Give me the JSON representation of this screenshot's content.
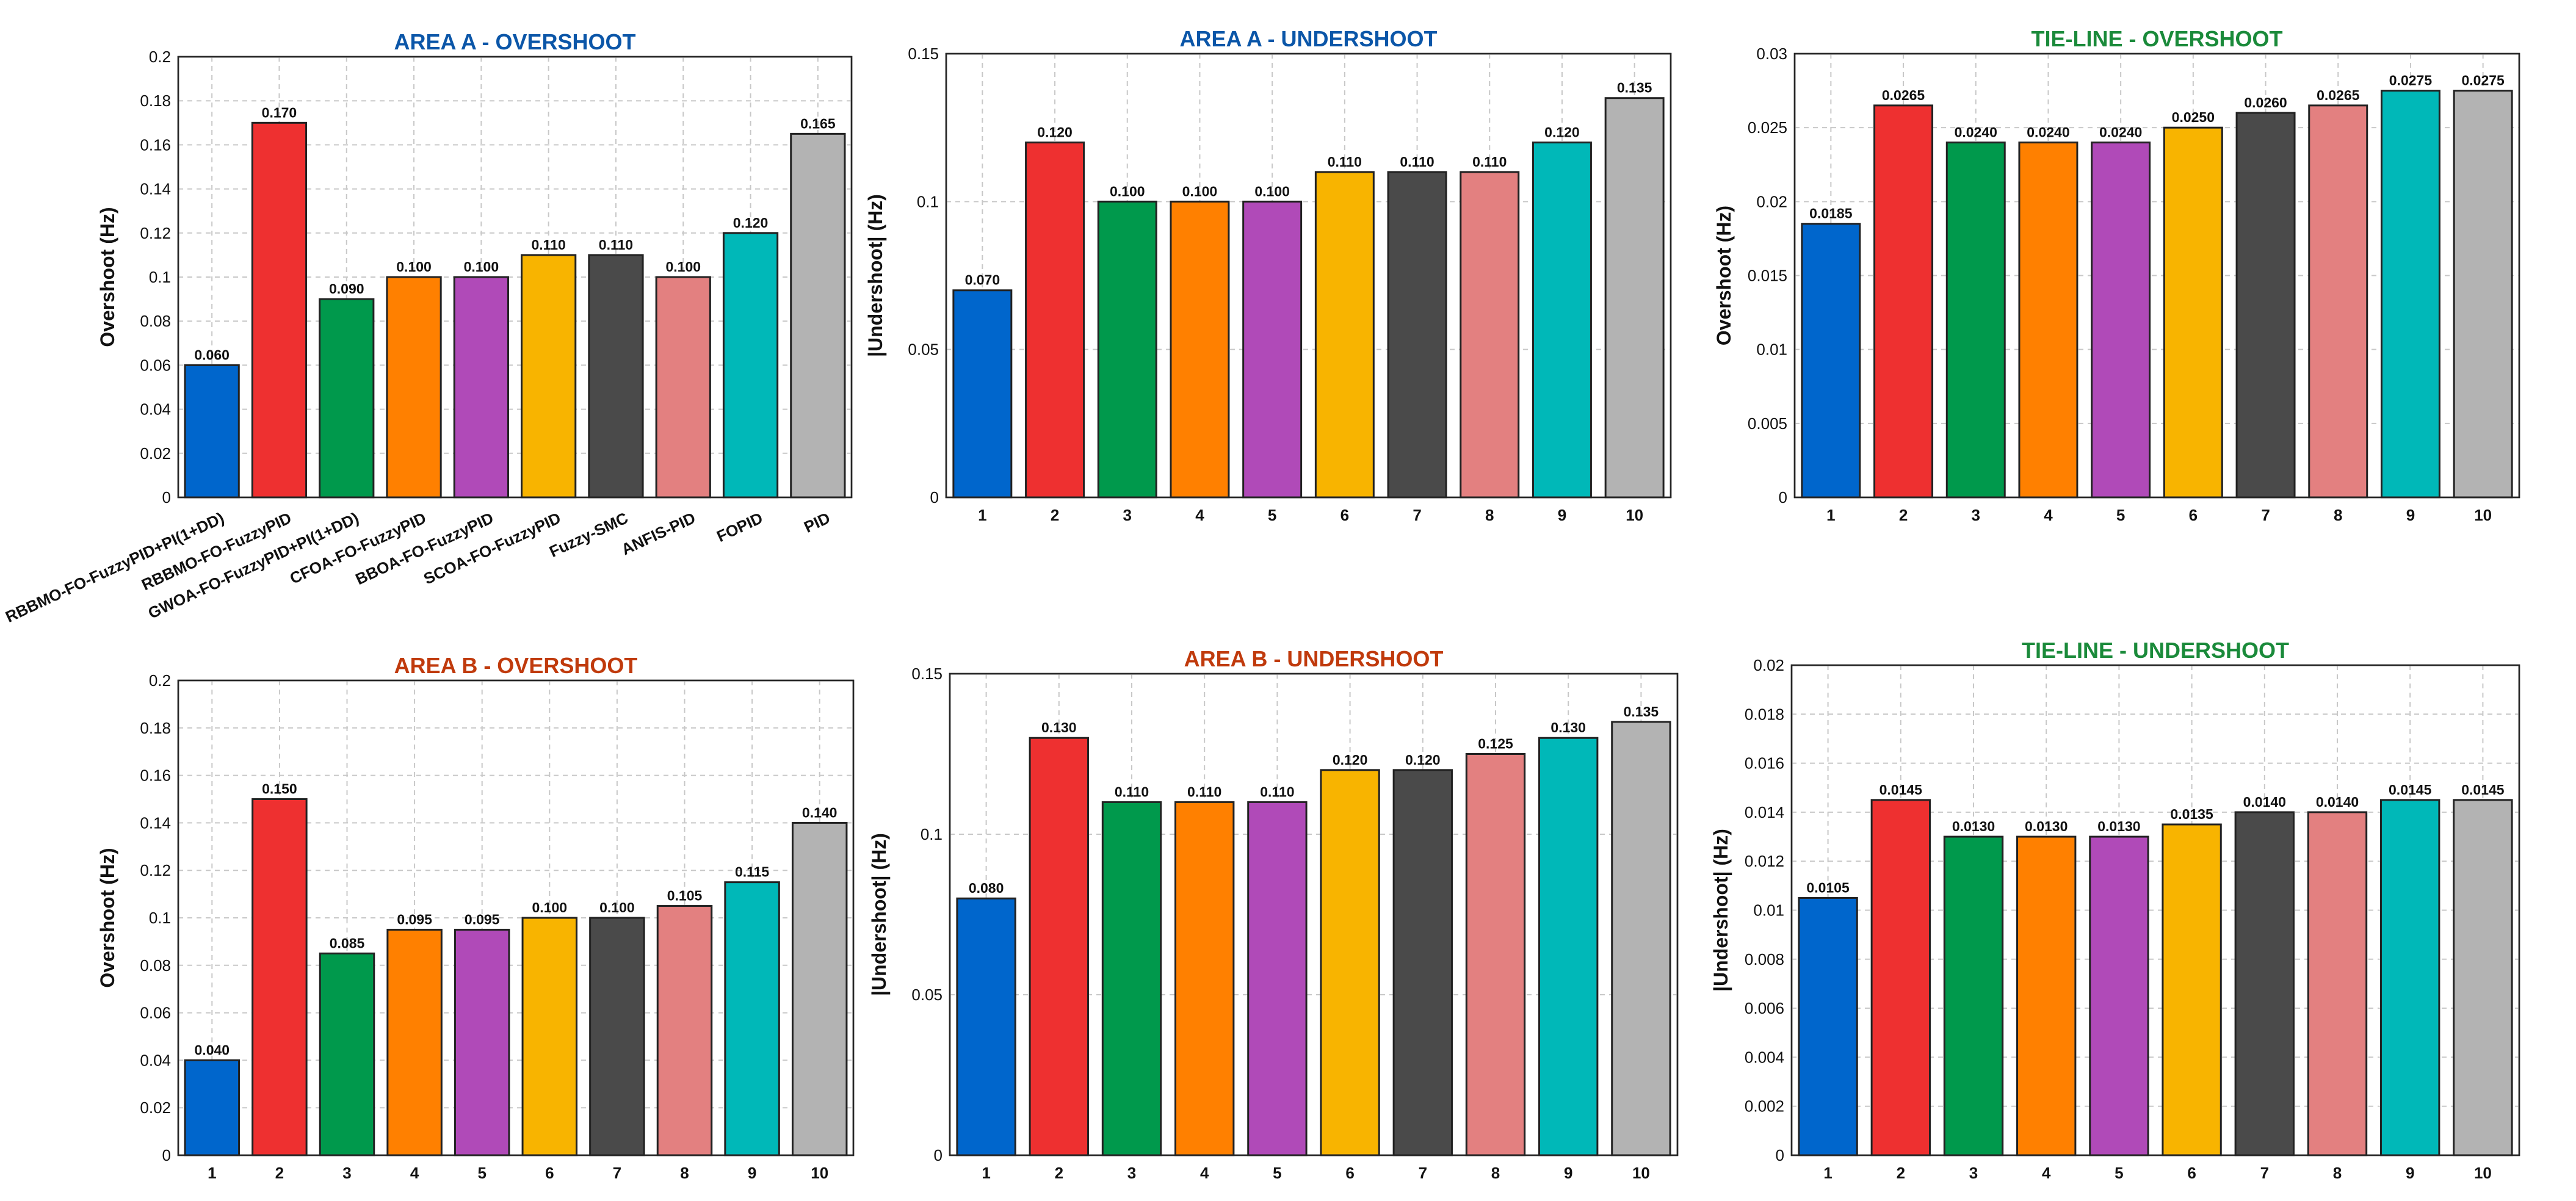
{
  "colors": [
    "#0066cc",
    "#ee3030",
    "#00994c",
    "#ff8000",
    "#b04ab8",
    "#f8b400",
    "#4a4a4a",
    "#e38080",
    "#00b8b8",
    "#b3b3b3"
  ],
  "title_colors": {
    "area_a": "#0b56a8",
    "area_b": "#c03a0c",
    "tie_line": "#1a8a3a"
  },
  "chart_data": [
    {
      "type": "bar",
      "title": "AREA A - OVERSHOOT",
      "title_color": "#0b56a8",
      "ylabel": "Overshoot (Hz)",
      "ylim": [
        0,
        0.2
      ],
      "yticks": [
        "0",
        "0.02",
        "0.04",
        "0.06",
        "0.08",
        "0.1",
        "0.12",
        "0.14",
        "0.16",
        "0.18",
        "0.2"
      ],
      "categories": [
        "RBBMO-FO-FuzzyPID+PI(1+DD)",
        "RBBMO-FO-FuzzyPID",
        "GWOA-FO-FuzzyPID+PI(1+DD)",
        "CFOA-FO-FuzzyPID",
        "BBOA-FO-FuzzyPID",
        "SCOA-FO-FuzzyPID",
        "Fuzzy-SMC",
        "ANFIS-PID",
        "FOPID",
        "PID"
      ],
      "values": [
        0.06,
        0.17,
        0.09,
        0.1,
        0.1,
        0.11,
        0.11,
        0.1,
        0.12,
        0.165
      ],
      "data_labels": [
        "0.060",
        "0.170",
        "0.090",
        "0.100",
        "0.100",
        "0.110",
        "0.110",
        "0.100",
        "0.120",
        "0.165"
      ],
      "grid": true
    },
    {
      "type": "bar",
      "title": "AREA A - UNDERSHOOT",
      "title_color": "#0b56a8",
      "ylabel": "|Undershoot| (Hz)",
      "ylim": [
        0,
        0.15
      ],
      "yticks": [
        "0",
        "0.05",
        "0.1",
        "0.15"
      ],
      "categories": [
        "1",
        "2",
        "3",
        "4",
        "5",
        "6",
        "7",
        "8",
        "9",
        "10"
      ],
      "values": [
        0.07,
        0.12,
        0.1,
        0.1,
        0.1,
        0.11,
        0.11,
        0.11,
        0.12,
        0.135
      ],
      "data_labels": [
        "0.070",
        "0.120",
        "0.100",
        "0.100",
        "0.100",
        "0.110",
        "0.110",
        "0.110",
        "0.120",
        "0.135"
      ],
      "grid": true
    },
    {
      "type": "bar",
      "title": "TIE-LINE - OVERSHOOT",
      "title_color": "#1a8a3a",
      "ylabel": "Overshoot (Hz)",
      "ylim": [
        0,
        0.03
      ],
      "yticks": [
        "0",
        "0.005",
        "0.01",
        "0.015",
        "0.02",
        "0.025",
        "0.03"
      ],
      "categories": [
        "1",
        "2",
        "3",
        "4",
        "5",
        "6",
        "7",
        "8",
        "9",
        "10"
      ],
      "values": [
        0.0185,
        0.0265,
        0.024,
        0.024,
        0.024,
        0.025,
        0.026,
        0.0265,
        0.0275,
        0.0275
      ],
      "data_labels": [
        "0.0185",
        "0.0265",
        "0.0240",
        "0.0240",
        "0.0240",
        "0.0250",
        "0.0260",
        "0.0265",
        "0.0275",
        "0.0275"
      ],
      "grid": true
    },
    {
      "type": "bar",
      "title": "AREA B - OVERSHOOT",
      "title_color": "#c03a0c",
      "ylabel": "Overshoot (Hz)",
      "ylim": [
        0,
        0.2
      ],
      "yticks": [
        "0",
        "0.02",
        "0.04",
        "0.06",
        "0.08",
        "0.1",
        "0.12",
        "0.14",
        "0.16",
        "0.18",
        "0.2"
      ],
      "categories": [
        "1",
        "2",
        "3",
        "4",
        "5",
        "6",
        "7",
        "8",
        "9",
        "10"
      ],
      "values": [
        0.04,
        0.15,
        0.085,
        0.095,
        0.095,
        0.1,
        0.1,
        0.105,
        0.115,
        0.14
      ],
      "data_labels": [
        "0.040",
        "0.150",
        "0.085",
        "0.095",
        "0.095",
        "0.100",
        "0.100",
        "0.105",
        "0.115",
        "0.140"
      ],
      "grid": true
    },
    {
      "type": "bar",
      "title": "AREA B - UNDERSHOOT",
      "title_color": "#c03a0c",
      "ylabel": "|Undershoot| (Hz)",
      "ylim": [
        0,
        0.15
      ],
      "yticks": [
        "0",
        "0.05",
        "0.1",
        "0.15"
      ],
      "categories": [
        "1",
        "2",
        "3",
        "4",
        "5",
        "6",
        "7",
        "8",
        "9",
        "10"
      ],
      "values": [
        0.08,
        0.13,
        0.11,
        0.11,
        0.11,
        0.12,
        0.12,
        0.125,
        0.13,
        0.135
      ],
      "data_labels": [
        "0.080",
        "0.130",
        "0.110",
        "0.110",
        "0.110",
        "0.120",
        "0.120",
        "0.125",
        "0.130",
        "0.135"
      ],
      "grid": true
    },
    {
      "type": "bar",
      "title": "TIE-LINE - UNDERSHOOT",
      "title_color": "#1a8a3a",
      "ylabel": "|Undershoot| (Hz)",
      "ylim": [
        0,
        0.02
      ],
      "yticks": [
        "0",
        "0.002",
        "0.004",
        "0.006",
        "0.008",
        "0.01",
        "0.012",
        "0.014",
        "0.016",
        "0.018",
        "0.02"
      ],
      "categories": [
        "1",
        "2",
        "3",
        "4",
        "5",
        "6",
        "7",
        "8",
        "9",
        "10"
      ],
      "values": [
        0.0105,
        0.0145,
        0.013,
        0.013,
        0.013,
        0.0135,
        0.014,
        0.014,
        0.0145,
        0.0145
      ],
      "data_labels": [
        "0.0105",
        "0.0145",
        "0.0130",
        "0.0130",
        "0.0130",
        "0.0135",
        "0.0140",
        "0.0140",
        "0.0145",
        "0.0145"
      ],
      "grid": true
    }
  ]
}
